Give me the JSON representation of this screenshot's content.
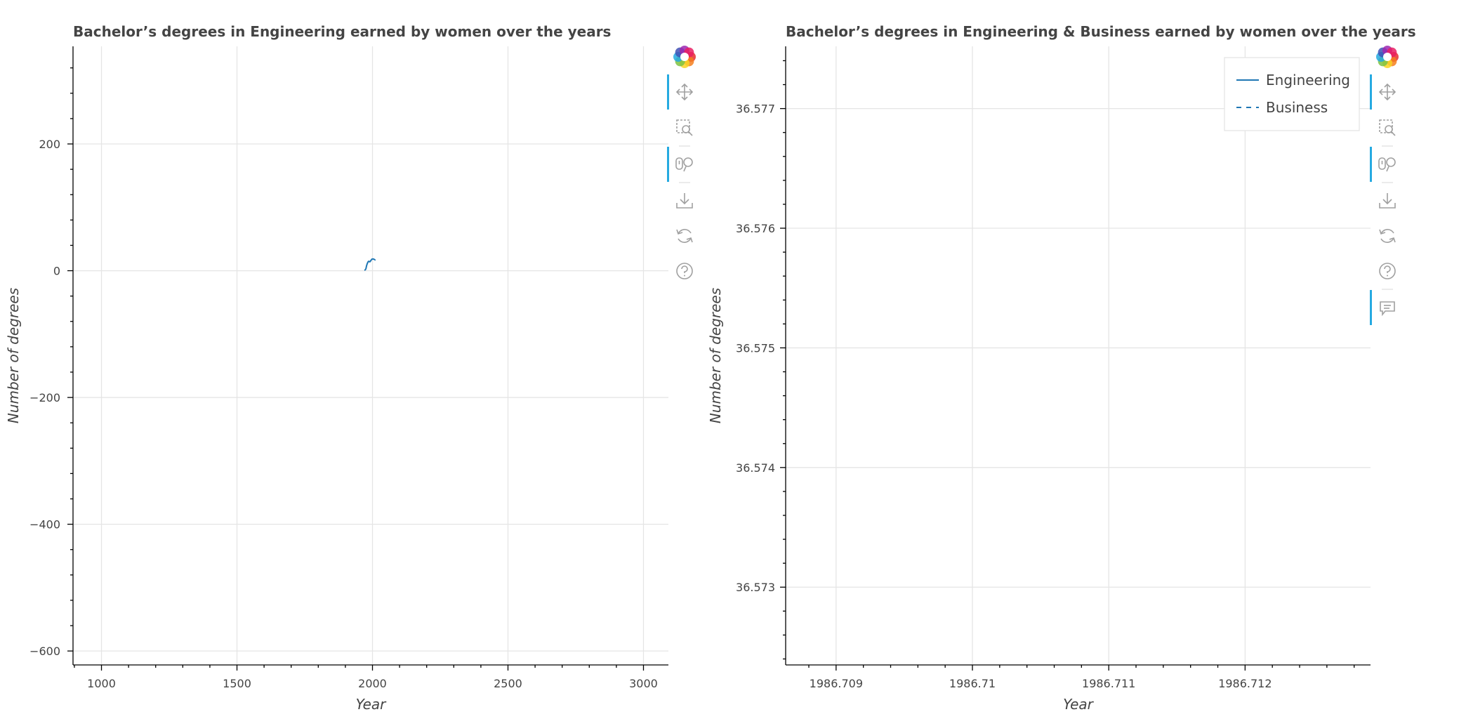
{
  "colors": {
    "series": "#1f77b4",
    "grid": "#e5e5e5",
    "active_tool": "#26aae1",
    "tool_icon": "#a0a0a0"
  },
  "chart_data": [
    {
      "type": "line",
      "title": "Bachelor’s degrees in Engineering earned by women over the years",
      "xlabel": "Year",
      "ylabel": "Number of degrees",
      "xlim": [
        895,
        3092
      ],
      "ylim": [
        -622,
        354
      ],
      "x_ticks": [
        1000,
        1500,
        2000,
        2500,
        3000
      ],
      "x_tick_labels": [
        "1000",
        "1500",
        "2000",
        "2500",
        "3000"
      ],
      "y_ticks": [
        200,
        0,
        -200,
        -400,
        -600
      ],
      "y_tick_labels": [
        "200",
        "0",
        "−200",
        "−400",
        "−600"
      ],
      "grid": true,
      "legend": false,
      "series": [
        {
          "x": [
            1970,
            1972,
            1974,
            1976,
            1978,
            1980,
            1982,
            1984,
            1986,
            1988,
            1990,
            1992,
            1994,
            1996,
            1998,
            2000,
            2002,
            2004,
            2006,
            2008,
            2010,
            2011
          ],
          "values": [
            0.8,
            1.0,
            1.7,
            3.5,
            7.5,
            10.3,
            12.4,
            14.1,
            14.8,
            14.5,
            14.1,
            14.6,
            16.3,
            17.0,
            18.3,
            18.5,
            18.5,
            18.5,
            17.9,
            17.4,
            17.2,
            17.5
          ]
        }
      ]
    },
    {
      "type": "line",
      "title": "Bachelor’s degrees in Engineering & Business earned by women over the years",
      "xlabel": "Year",
      "ylabel": "Number of degrees",
      "xlim": [
        1986.70863,
        1986.71292
      ],
      "ylim": [
        36.57235,
        36.57752
      ],
      "x_ticks": [
        1986.709,
        1986.71,
        1986.711,
        1986.712
      ],
      "x_tick_labels": [
        "1986.709",
        "1986.71",
        "1986.711",
        "1986.712"
      ],
      "y_ticks": [
        36.577,
        36.576,
        36.575,
        36.574,
        36.573
      ],
      "y_tick_labels": [
        "36.577",
        "36.576",
        "36.575",
        "36.574",
        "36.573"
      ],
      "grid": true,
      "legend": "top-right",
      "series": [
        {
          "name": "Engineering",
          "dash": "solid",
          "x": [],
          "values": []
        },
        {
          "name": "Business",
          "dash": "dashed",
          "x": [],
          "values": []
        }
      ]
    }
  ],
  "toolbar": {
    "logo": "bokeh-logo-icon",
    "tools": [
      "pan-icon",
      "box-zoom-icon",
      "wheel-zoom-icon",
      "save-icon",
      "reset-icon",
      "help-icon",
      "hover-icon"
    ]
  }
}
